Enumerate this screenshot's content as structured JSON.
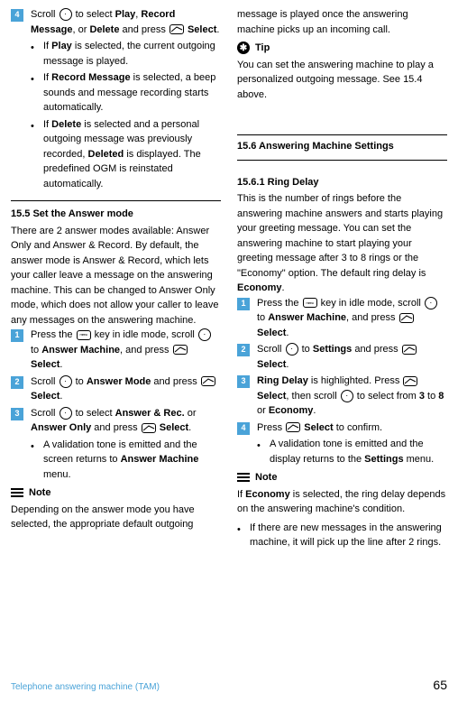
{
  "left": {
    "step4": {
      "num": "4",
      "body": "Scroll {nav} to select <b>Play</b>, <b>Record Message</b>, or <b>Delete</b> and press {soft} <b>Select</b>."
    },
    "bullets1": [
      "If <b>Play</b> is selected, the current outgoing message is played.",
      "If <b>Record Message</b> is selected, a beep sounds and message recording starts automatically.",
      "If <b>Delete</b> is selected and a personal outgoing message was previously recorded, <b>Deleted</b> is displayed. The predefined OGM is reinstated automatically."
    ],
    "sec15_5_head": "15.5    Set the Answer mode",
    "sec15_5_body": "There are 2 answer modes available: Answer Only and Answer & Record. By default, the answer mode is Answer & Record, which lets your caller leave a message on the answering machine. This can be changed to Answer Only mode, which does not allow your caller to leave any messages on the answering machine.",
    "steps15_5": [
      {
        "num": "1",
        "body": "Press the {menu} key in idle mode, scroll {nav} to <b>Answer Machine</b>, and press {soft} <b>Select</b>."
      },
      {
        "num": "2",
        "body": "Scroll {nav} to <b>Answer Mode</b> and press {soft} <b>Select</b>."
      },
      {
        "num": "3",
        "body": "Scroll {nav} to select <b>Answer & Rec.</b> or <b>Answer Only</b> and press {soft} <b>Select</b>."
      }
    ],
    "bullet15_5": "A validation tone is emitted and the screen returns to <b>Answer Machine</b> menu.",
    "note_label": "Note",
    "note_body": "Depending on the answer mode you have selected, the appropriate default outgoing"
  },
  "right": {
    "cont": "message is played once the answering machine picks up an incoming call.",
    "tip_label": "Tip",
    "tip_body": "You can set the answering machine to play a personalized outgoing message. See 15.4 above.",
    "sec15_6_head": "15.6    Answering Machine Settings",
    "sec15_6_1_head": "15.6.1 Ring Delay",
    "sec15_6_1_body": "This is the number of rings before the answering machine answers and starts playing your greeting message. You can set the answering machine to start playing your greeting message after 3 to 8 rings or the \"Economy\" option. The default ring delay is <b>Economy</b>.",
    "steps15_6_1": [
      {
        "num": "1",
        "body": "Press the {menu} key in idle mode, scroll {nav} to <b>Answer Machine</b>, and press {soft} <b>Select</b>."
      },
      {
        "num": "2",
        "body": "Scroll {nav} to <b>Settings</b> and press {soft} <b>Select</b>."
      },
      {
        "num": "3",
        "body": "<b>Ring Delay</b> is highlighted. Press {soft} <b>Select</b>, then scroll {nav} to select from <b>3</b> to <b>8</b> or <b>Economy</b>."
      },
      {
        "num": "4",
        "body": "Press {soft} <b>Select</b> to confirm."
      }
    ],
    "bullet15_6_1": "A validation tone is emitted and the display returns to the <b>Settings</b> menu.",
    "note_label": "Note",
    "note_body": "If <b>Economy</b> is selected, the ring delay depends on the answering machine's condition.",
    "note_bullet": "If there are new messages in the answering machine, it will pick up the line after 2 rings."
  },
  "footer": {
    "text": "Telephone answering machine (TAM)",
    "page": "65"
  },
  "colors": {
    "accent": "#4aa3d8",
    "text": "#000000",
    "bg": "#ffffff"
  }
}
